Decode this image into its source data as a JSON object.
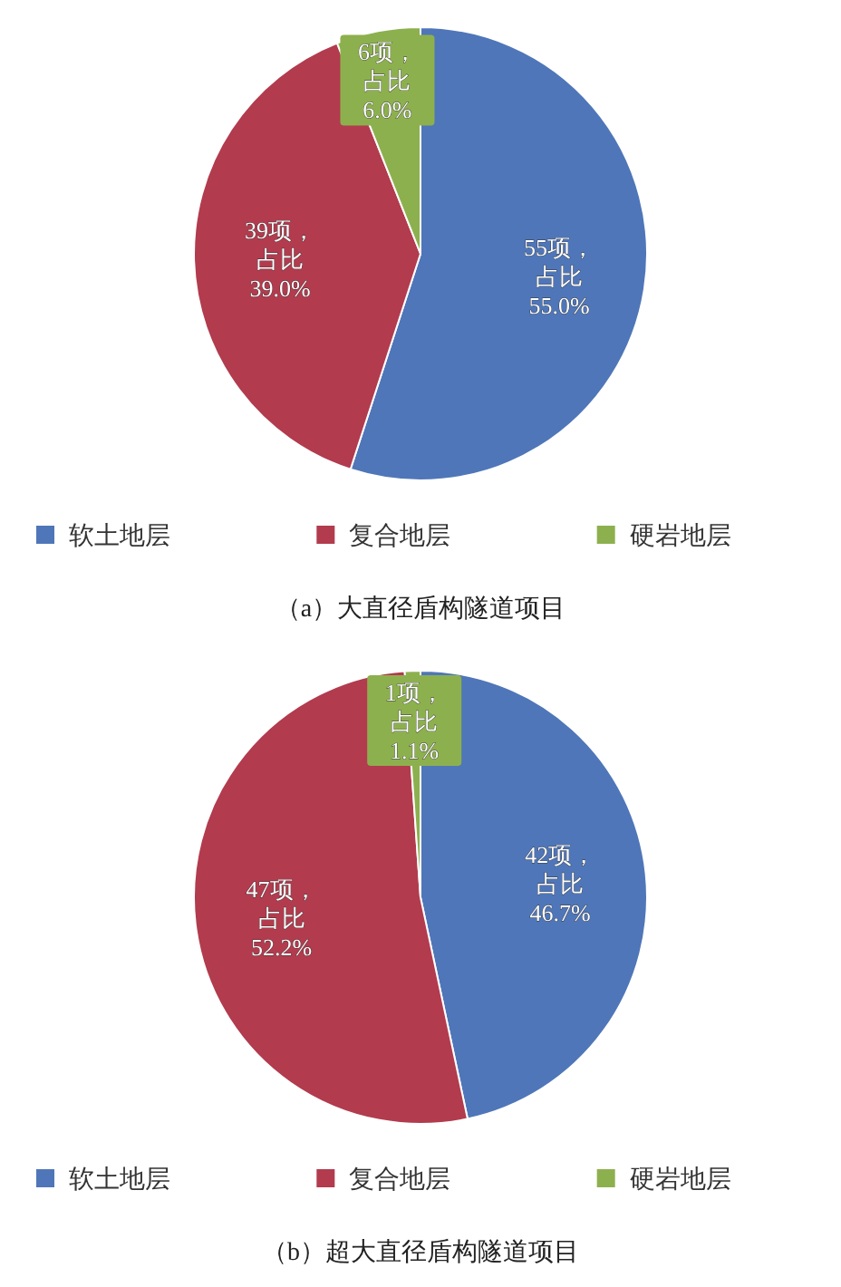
{
  "chart_data": [
    {
      "type": "pie",
      "title": "（a）大直径盾构隧道项目",
      "categories": [
        "软土地层",
        "复合地层",
        "硬岩地层"
      ],
      "values": [
        55,
        39,
        6
      ],
      "colors": [
        "#4f76b8",
        "#b23b4e",
        "#8db04e"
      ],
      "value_labels": [
        "55项，占比55.0%",
        "39项，占比39.0%",
        "6项，占比6.0%"
      ],
      "legend": "bottom"
    },
    {
      "type": "pie",
      "title": "（b）超大直径盾构隧道项目",
      "categories": [
        "软土地层",
        "复合地层",
        "硬岩地层"
      ],
      "values": [
        42,
        47,
        1
      ],
      "colors": [
        "#4f76b8",
        "#b23b4e",
        "#8db04e"
      ],
      "value_labels": [
        "42项，占比46.7%",
        "47项，占比52.2%",
        "1项，占比1.1%"
      ],
      "legend": "bottom"
    }
  ]
}
